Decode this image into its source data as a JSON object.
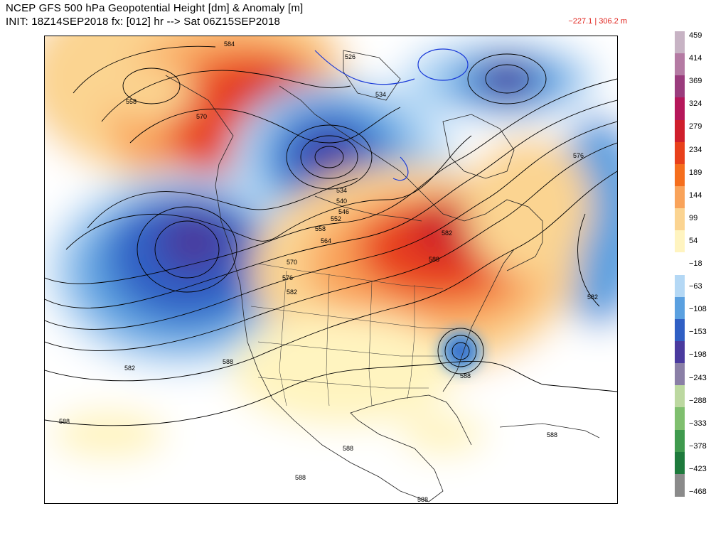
{
  "title": {
    "line1": "NCEP GFS 500 hPa Geopotential Height [dm] & Anomaly [m]",
    "line2": "INIT: 18Z14SEP2018 fx: [012] hr --> Sat 06Z15SEP2018"
  },
  "anomaly_range": "−227.1 | 306.2 m",
  "colorbar": {
    "labels": [
      "459",
      "414",
      "369",
      "324",
      "279",
      "234",
      "189",
      "144",
      "99",
      "54",
      "−18",
      "−63",
      "−108",
      "−153",
      "−198",
      "−243",
      "−288",
      "−333",
      "−378",
      "−423",
      "−468"
    ],
    "colors": [
      "#c7b3c4",
      "#b47aa3",
      "#9a3c7d",
      "#b5175a",
      "#cf1f2c",
      "#e8401b",
      "#f56e1d",
      "#f9a35a",
      "#fbd491",
      "#fff4c0",
      "#ffffff",
      "#b4d8f5",
      "#5aa0e0",
      "#2f5fc4",
      "#4a3a9e",
      "#8a7fa6",
      "#bcd8a0",
      "#7fbf6e",
      "#3f9a4e",
      "#1e7a3c",
      "#8a8a8a"
    ]
  },
  "map": {
    "contour_labels": [
      {
        "text": "584"
      },
      {
        "text": "526"
      },
      {
        "text": "558"
      },
      {
        "text": "570"
      },
      {
        "text": "534"
      },
      {
        "text": "576"
      },
      {
        "text": "534"
      },
      {
        "text": "540"
      },
      {
        "text": "546"
      },
      {
        "text": "552"
      },
      {
        "text": "558"
      },
      {
        "text": "564"
      },
      {
        "text": "570"
      },
      {
        "text": "576"
      },
      {
        "text": "582"
      },
      {
        "text": "582"
      },
      {
        "text": "588"
      },
      {
        "text": "582"
      },
      {
        "text": "582"
      },
      {
        "text": "588"
      },
      {
        "text": "588"
      },
      {
        "text": "588"
      },
      {
        "text": "588"
      },
      {
        "text": "588"
      },
      {
        "text": "588"
      },
      {
        "text": "588"
      }
    ]
  }
}
